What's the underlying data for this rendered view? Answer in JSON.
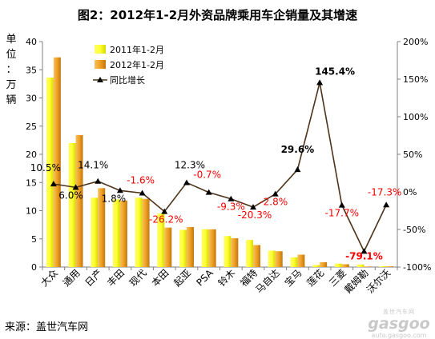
{
  "title": "图2：2012年1-2月外资品牌乘用车企销量及其增速",
  "y_unit_chars": [
    "单",
    "位",
    "：",
    "万",
    "辆"
  ],
  "source": "来源：盖世汽车网",
  "watermark": {
    "cn": "盖世汽车网",
    "logo": "gasgoo",
    "url": "auto.gasgoo.com"
  },
  "colors": {
    "series2011": "#ffff33",
    "series2012": "#f0a020",
    "growth_line": "#4d3319",
    "negative_label": "#ff0000",
    "axis": "#808080"
  },
  "chart_data": {
    "type": "bar",
    "categories": [
      "大众",
      "通用",
      "日产",
      "丰田",
      "现代",
      "本田",
      "起亚",
      "PSA",
      "铃木",
      "福特",
      "马自达",
      "宝马",
      "莲花",
      "三菱",
      "戴姆勒",
      "沃尔沃"
    ],
    "series": [
      {
        "name": "2011年1-2月",
        "type": "bar",
        "axis": "left",
        "values": [
          33.6,
          22.0,
          12.3,
          12.0,
          12.3,
          9.5,
          6.6,
          6.7,
          5.5,
          4.8,
          2.9,
          1.7,
          0.35,
          0.6,
          0.45,
          0.15
        ]
      },
      {
        "name": "2012年1-2月",
        "type": "bar",
        "axis": "left",
        "values": [
          37.2,
          23.4,
          14.0,
          11.8,
          12.1,
          7.0,
          7.1,
          6.7,
          5.1,
          3.9,
          2.8,
          2.2,
          0.85,
          0.5,
          0.1,
          0.13
        ]
      },
      {
        "name": "同比增长",
        "type": "line",
        "axis": "right",
        "values": [
          10.5,
          6.0,
          14.1,
          1.8,
          -1.6,
          -26.2,
          12.3,
          -0.7,
          -9.3,
          -20.3,
          -2.8,
          29.6,
          145.4,
          -17.7,
          -79.1,
          -17.3
        ]
      }
    ],
    "growth_labels": [
      "10.5%",
      "6.0%",
      "14.1%",
      "1.8%",
      "-1.6%",
      "-26.2%",
      "12.3%",
      "-0.7%",
      "-9.3%",
      "-20.3%",
      "-2.8%",
      "29.6%",
      "145.4%",
      "-17.7%",
      "-79.1%",
      "-17.3%"
    ],
    "left_axis": {
      "min": 0,
      "max": 40,
      "ticks": [
        "0",
        "5",
        "10",
        "15",
        "20",
        "25",
        "30",
        "35",
        "40"
      ]
    },
    "right_axis": {
      "min": -100,
      "max": 200,
      "ticks": [
        "-100%",
        "-50%",
        "0%",
        "50%",
        "100%",
        "150%",
        "200%"
      ]
    },
    "legend": {
      "position": "top-left",
      "entries": [
        "2011年1-2月",
        "2012年1-2月",
        "同比增长"
      ]
    },
    "grid": false
  }
}
